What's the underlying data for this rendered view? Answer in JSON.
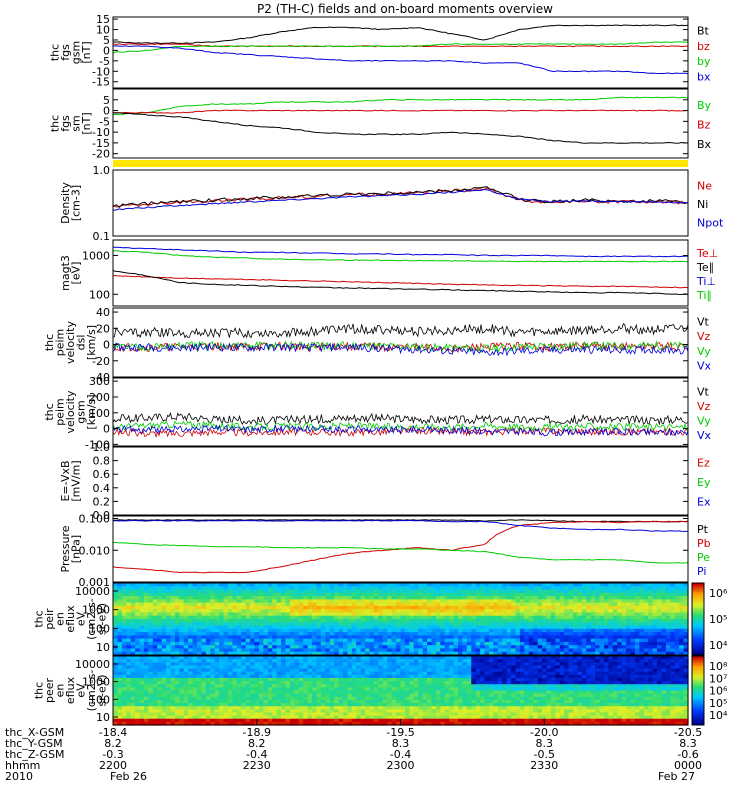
{
  "title": "P2 (TH-C) fields and on-board moments overview",
  "colors": {
    "black": "#000000",
    "red": "#d00000",
    "green": "#00cc00",
    "blue": "#0000dd",
    "yellow": "#ffe600"
  },
  "chart_data": [
    {
      "type": "line",
      "id": "fgs_gsm",
      "ylabel": [
        "thc",
        "fgs",
        "gsm",
        "[nT]"
      ],
      "ylim": [
        -18,
        16
      ],
      "yticks": [
        15,
        10,
        5,
        0,
        -5,
        -10,
        -15
      ],
      "series": [
        {
          "name": "Bt",
          "color": "black",
          "values": [
            4,
            3.5,
            3.5,
            4,
            6,
            9,
            11,
            11,
            10,
            11,
            8,
            5,
            10,
            12,
            12,
            12,
            12,
            12
          ]
        },
        {
          "name": "bz",
          "color": "red",
          "values": [
            3,
            3,
            3,
            2,
            2,
            2,
            2,
            2,
            2,
            2,
            2,
            2,
            2,
            2,
            2,
            2,
            2,
            2
          ]
        },
        {
          "name": "by",
          "color": "green",
          "values": [
            -1,
            0,
            2,
            2,
            2,
            2,
            2,
            2,
            2,
            2,
            3,
            3,
            3,
            3,
            3,
            3,
            4,
            4
          ]
        },
        {
          "name": "bx",
          "color": "blue",
          "values": [
            2,
            2,
            1,
            -1,
            -2,
            -3,
            -4,
            -5,
            -5,
            -5,
            -5,
            -6,
            -6,
            -10,
            -10,
            -10,
            -11,
            -11
          ]
        }
      ]
    },
    {
      "type": "line",
      "id": "fgs_sm",
      "ylabel": [
        "thc",
        "fgs",
        "sm",
        "[nT]"
      ],
      "ylim": [
        -22,
        10
      ],
      "yticks": [
        5,
        0,
        -5,
        -10,
        -15,
        -20
      ],
      "series": [
        {
          "name": "By",
          "color": "green",
          "values": [
            -2,
            -1,
            2,
            3,
            3,
            4,
            4,
            4,
            5,
            5,
            5,
            5,
            5,
            5,
            5,
            6,
            6,
            6
          ]
        },
        {
          "name": "Bz",
          "color": "red",
          "values": [
            -1,
            -1,
            -1,
            0,
            0,
            0,
            0,
            0,
            0,
            0,
            0,
            0,
            0,
            0,
            0,
            0,
            0,
            0
          ]
        },
        {
          "name": "Bx",
          "color": "black",
          "values": [
            -1,
            -2,
            -3,
            -5,
            -7,
            -8,
            -10,
            -11,
            -11,
            -11,
            -10,
            -11,
            -12,
            -14,
            -15,
            -15,
            -15,
            -15
          ]
        }
      ]
    },
    {
      "type": "line",
      "id": "density",
      "ylabel": [
        "Density",
        "[cm-3]"
      ],
      "ylim": [
        0.1,
        1.0
      ],
      "log": true,
      "ytick_labels": [
        "1.0",
        "0.1"
      ],
      "series": [
        {
          "name": "Ne",
          "color": "red",
          "values": [
            0.28,
            0.3,
            0.32,
            0.34,
            0.36,
            0.38,
            0.4,
            0.42,
            0.43,
            0.45,
            0.48,
            0.52,
            0.35,
            0.32,
            0.34,
            0.33,
            0.33,
            0.32
          ]
        },
        {
          "name": "Ni",
          "color": "black",
          "values": [
            0.28,
            0.31,
            0.33,
            0.35,
            0.37,
            0.39,
            0.41,
            0.43,
            0.44,
            0.46,
            0.49,
            0.54,
            0.36,
            0.33,
            0.35,
            0.34,
            0.34,
            0.33
          ]
        },
        {
          "name": "Npot",
          "color": "blue",
          "values": [
            0.25,
            0.27,
            0.29,
            0.31,
            0.33,
            0.35,
            0.37,
            0.39,
            0.41,
            0.43,
            0.46,
            0.5,
            0.36,
            0.33,
            0.34,
            0.33,
            0.33,
            0.32
          ]
        }
      ]
    },
    {
      "type": "line",
      "id": "temperature",
      "ylabel": [
        "magt3",
        "[eV]"
      ],
      "ylim": [
        50,
        2500
      ],
      "log": true,
      "ytick_labels": [
        "1000",
        "100"
      ],
      "series": [
        {
          "name": "Te⊥",
          "color": "red",
          "values": [
            300,
            280,
            260,
            250,
            240,
            230,
            220,
            210,
            200,
            190,
            180,
            175,
            170,
            165,
            160,
            160,
            155,
            150
          ]
        },
        {
          "name": "Te∥",
          "color": "black",
          "values": [
            400,
            300,
            200,
            180,
            170,
            160,
            150,
            145,
            140,
            135,
            130,
            125,
            120,
            115,
            110,
            110,
            105,
            100
          ]
        },
        {
          "name": "Ti⊥",
          "color": "blue",
          "values": [
            1600,
            1500,
            1400,
            1300,
            1200,
            1200,
            1150,
            1100,
            1100,
            1050,
            1050,
            1000,
            1000,
            1000,
            950,
            950,
            950,
            950
          ]
        },
        {
          "name": "Ti∥",
          "color": "green",
          "values": [
            1300,
            1200,
            1000,
            900,
            850,
            800,
            780,
            760,
            750,
            740,
            730,
            720,
            700,
            700,
            700,
            700,
            700,
            700
          ]
        }
      ]
    },
    {
      "type": "line",
      "id": "velocity_dsl",
      "ylabel": [
        "thc",
        "peim",
        "velocity",
        "dsl",
        "[km/s]"
      ],
      "ylim": [
        -40,
        45
      ],
      "yticks": [
        40,
        20,
        0,
        -20,
        -40
      ],
      "series": [
        {
          "name": "Vt",
          "color": "black",
          "values": [
            15,
            15,
            14,
            15,
            14,
            15,
            16,
            20,
            18,
            16,
            18,
            20,
            15,
            16,
            18,
            20,
            18,
            20
          ]
        },
        {
          "name": "Vz",
          "color": "red",
          "values": [
            -3,
            -4,
            -3,
            -2,
            -3,
            -2,
            -3,
            -2,
            -3,
            -4,
            -5,
            -3,
            -2,
            -3,
            -2,
            -3,
            -2,
            -3
          ]
        },
        {
          "name": "Vy",
          "color": "green",
          "values": [
            -2,
            -3,
            -2,
            -1,
            -2,
            -1,
            -2,
            -1,
            -2,
            -3,
            -4,
            -5,
            -3,
            -2,
            -1,
            -2,
            -1,
            -2
          ]
        },
        {
          "name": "Vx",
          "color": "blue",
          "values": [
            -4,
            -3,
            -4,
            -3,
            -4,
            -3,
            -4,
            -3,
            -5,
            -6,
            -8,
            -10,
            -8,
            -7,
            -6,
            -7,
            -6,
            -7
          ]
        }
      ]
    },
    {
      "type": "line",
      "id": "velocity_gsm",
      "ylabel": [
        "thc",
        "peim",
        "velocity",
        "gsm",
        "[km/s]"
      ],
      "ylim": [
        -110,
        320
      ],
      "yticks": [
        300,
        200,
        100,
        0,
        -100
      ],
      "series": [
        {
          "name": "Vt",
          "color": "black",
          "values": [
            60,
            70,
            80,
            60,
            50,
            55,
            60,
            70,
            65,
            60,
            55,
            60,
            55,
            55,
            60,
            55,
            55,
            60
          ]
        },
        {
          "name": "Vz",
          "color": "red",
          "values": [
            -20,
            -30,
            -30,
            -20,
            -25,
            -20,
            -20,
            -25,
            -20,
            -15,
            -20,
            -20,
            -15,
            -15,
            -20,
            -20,
            -20,
            -20
          ]
        },
        {
          "name": "Vy",
          "color": "green",
          "values": [
            10,
            20,
            30,
            20,
            10,
            15,
            10,
            20,
            10,
            15,
            10,
            20,
            10,
            10,
            15,
            10,
            10,
            10
          ]
        },
        {
          "name": "Vx",
          "color": "blue",
          "values": [
            0,
            -10,
            -5,
            0,
            -5,
            0,
            -5,
            0,
            -10,
            -5,
            -10,
            -15,
            -20,
            -25,
            -20,
            -20,
            -25,
            -20
          ]
        }
      ]
    },
    {
      "type": "line",
      "id": "efield",
      "ylabel": [
        "E=-VxB",
        "[mV/m]"
      ],
      "ylim": [
        0.0,
        1.0
      ],
      "yticks": [
        1.0,
        0.8,
        0.6,
        0.4,
        0.2,
        0.0
      ],
      "ytick_labels": [
        "1.0",
        "0.8",
        "0.6",
        "0.4",
        "0.2",
        "0.0"
      ],
      "series": [
        {
          "name": "Ez",
          "color": "red",
          "values": []
        },
        {
          "name": "Ey",
          "color": "green",
          "values": []
        },
        {
          "name": "Ex",
          "color": "blue",
          "values": []
        }
      ]
    },
    {
      "type": "line",
      "id": "pressure",
      "ylabel": [
        "Pressure",
        "[nPa]"
      ],
      "ylim": [
        0.001,
        0.12
      ],
      "log": true,
      "ytick_labels": [
        "0.100",
        "0.010",
        "0.001"
      ],
      "series": [
        {
          "name": "Pt",
          "color": "black",
          "values": [
            0.09,
            0.09,
            0.09,
            0.09,
            0.09,
            0.09,
            0.09,
            0.09,
            0.09,
            0.09,
            0.09,
            0.085,
            0.09,
            0.085,
            0.08,
            0.08,
            0.08,
            0.08
          ]
        },
        {
          "name": "Pb",
          "color": "red",
          "values": [
            0.003,
            0.0025,
            0.002,
            0.002,
            0.002,
            0.003,
            0.005,
            0.008,
            0.01,
            0.012,
            0.01,
            0.015,
            0.06,
            0.075,
            0.08,
            0.075,
            0.08,
            0.08
          ]
        },
        {
          "name": "Pe",
          "color": "green",
          "values": [
            0.018,
            0.015,
            0.014,
            0.013,
            0.013,
            0.012,
            0.012,
            0.012,
            0.011,
            0.011,
            0.01,
            0.009,
            0.006,
            0.005,
            0.005,
            0.005,
            0.004,
            0.004
          ]
        },
        {
          "name": "Pi",
          "color": "blue",
          "values": [
            0.085,
            0.085,
            0.085,
            0.085,
            0.085,
            0.085,
            0.085,
            0.085,
            0.085,
            0.085,
            0.08,
            0.08,
            0.06,
            0.05,
            0.045,
            0.045,
            0.04,
            0.04
          ]
        }
      ]
    },
    {
      "type": "heatmap",
      "id": "ion_spectrogram",
      "ylabel": [
        "thc",
        "peir",
        "en",
        "eflux",
        "eV",
        "(cm2-s-",
        "sr-eV)"
      ],
      "ytick_labels": [
        "10000",
        "1000",
        "100",
        "10"
      ],
      "colorbar_labels": [
        "10⁶",
        "10⁵",
        "10⁴"
      ]
    },
    {
      "type": "heatmap",
      "id": "electron_spectrogram",
      "ylabel": [
        "thc",
        "peer",
        "en",
        "eflux",
        "eV",
        "(cm2-s-",
        "sr-eV)"
      ],
      "ytick_labels": [
        "10000",
        "1000",
        "100",
        "10"
      ],
      "colorbar_labels": [
        "10⁸",
        "10⁷",
        "10⁶",
        "10⁵",
        "10⁴"
      ]
    }
  ],
  "xaxis": {
    "row_labels": [
      "thc_X-GSM",
      "thc_Y-GSM",
      "thc_Z-GSM",
      "hhmm",
      "2010"
    ],
    "ticks": [
      {
        "values": [
          "-18.4",
          "8.2",
          "-0.3",
          "2200",
          "Feb 26"
        ]
      },
      {
        "values": [
          "-18.9",
          "8.2",
          "-0.4",
          "2230",
          ""
        ]
      },
      {
        "values": [
          "-19.5",
          "8.3",
          "-0.4",
          "2300",
          ""
        ]
      },
      {
        "values": [
          "-20.0",
          "8.3",
          "-0.5",
          "2330",
          ""
        ]
      },
      {
        "values": [
          "-20.5",
          "8.3",
          "-0.6",
          "0000",
          "Feb 27"
        ]
      }
    ]
  }
}
